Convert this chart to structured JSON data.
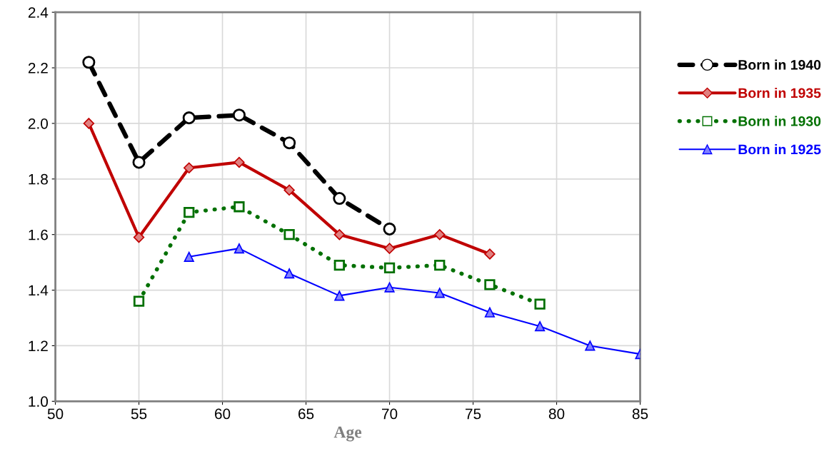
{
  "chart_data": {
    "type": "line",
    "xlabel": "Age",
    "xlim": [
      50,
      85
    ],
    "xticks": [
      50,
      55,
      60,
      65,
      70,
      75,
      80,
      85
    ],
    "ylim": [
      1.0,
      2.4
    ],
    "yticks": [
      {
        "value": 1,
        "label": "1.0"
      },
      1.2,
      1.4,
      1.6,
      1.8,
      {
        "value": 2,
        "label": "2.0"
      },
      2.2,
      2.4
    ],
    "grid": true,
    "legend": "right",
    "series": [
      {
        "name": "Born in 1940",
        "color": "#000000",
        "marker": "circle",
        "line_style": "dashed",
        "x": [
          52,
          55,
          58,
          61,
          64,
          67,
          70
        ],
        "values": [
          2.22,
          1.86,
          2.02,
          2.03,
          1.93,
          1.73,
          1.62
        ]
      },
      {
        "name": "Born in 1935",
        "color": "#c00000",
        "marker": "diamond",
        "line_style": "solid",
        "x": [
          52,
          55,
          58,
          61,
          64,
          67,
          70,
          73,
          76
        ],
        "values": [
          2.0,
          1.59,
          1.84,
          1.86,
          1.76,
          1.6,
          1.55,
          1.6,
          1.53
        ]
      },
      {
        "name": "Born in 1930",
        "color": "#007000",
        "marker": "square",
        "line_style": "dotted",
        "x": [
          55,
          58,
          61,
          64,
          67,
          70,
          73,
          76,
          79
        ],
        "values": [
          1.36,
          1.68,
          1.7,
          1.6,
          1.49,
          1.48,
          1.49,
          1.42,
          1.35
        ]
      },
      {
        "name": "Born in 1925",
        "color": "#0000ff",
        "marker": "triangle",
        "line_style": "solid",
        "x": [
          58,
          61,
          64,
          67,
          70,
          73,
          76,
          79,
          82,
          85
        ],
        "values": [
          1.52,
          1.55,
          1.46,
          1.38,
          1.41,
          1.39,
          1.32,
          1.27,
          1.2,
          1.17
        ]
      }
    ]
  }
}
